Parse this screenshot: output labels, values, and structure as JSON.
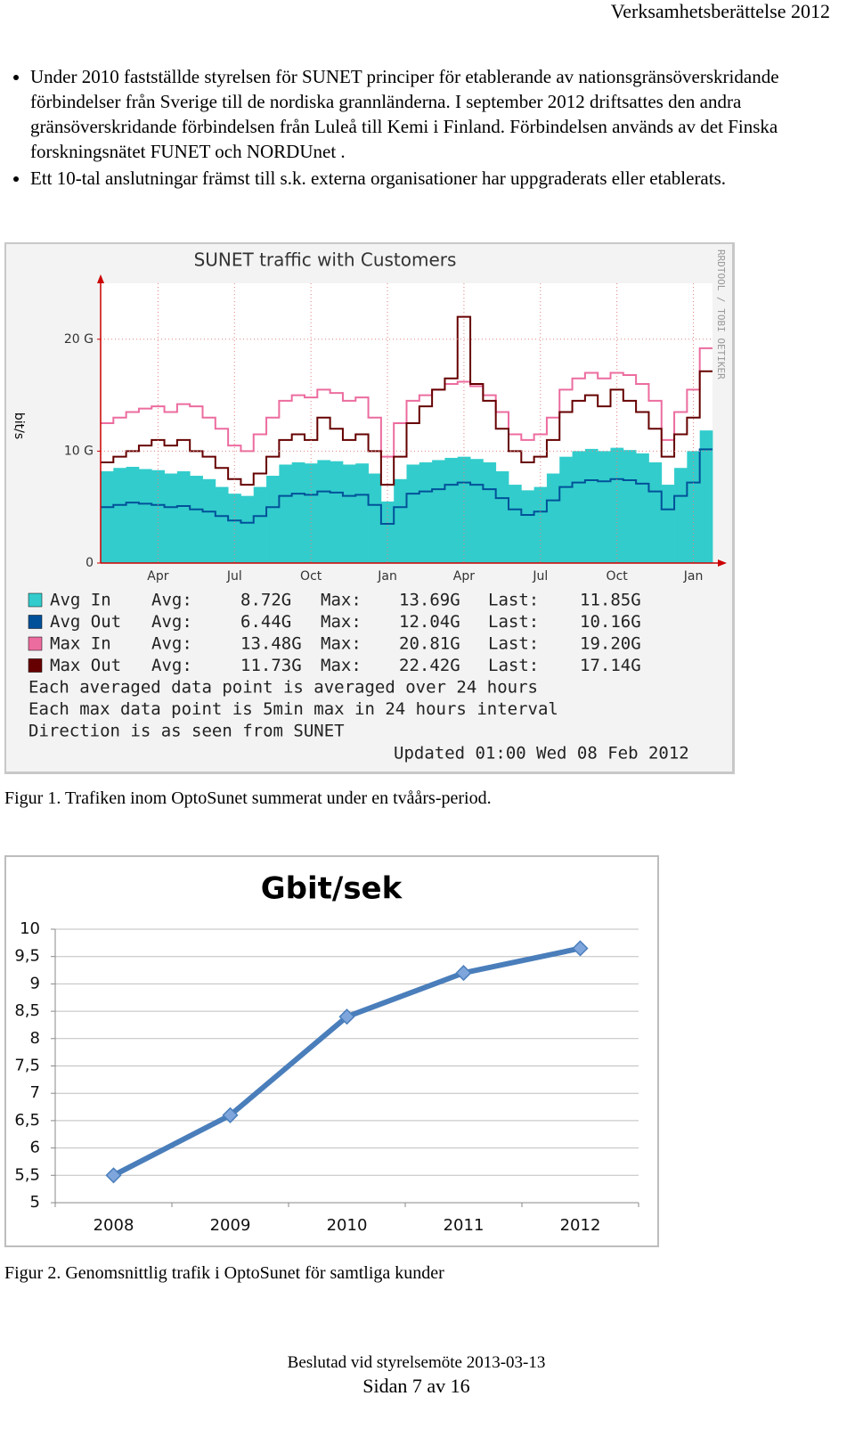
{
  "header": "Verksamhetsberättelse 2012",
  "bullets": [
    "Under 2010 fastställde styrelsen för SUNET principer för etablerande av nationsgränsöverskridande förbindelser från Sverige till de nordiska grannländerna. I september 2012 driftsattes den andra gränsöverskridande förbindelsen från Luleå till Kemi i Finland. Förbindelsen används av det Finska forskningsnätet FUNET och NORDUnet .",
    "Ett 10-tal anslutningar främst till s.k. externa organisationer har uppgraderats eller etablerats."
  ],
  "captions": [
    "Figur 1. Trafiken inom OptoSunet summerat under en tvåårs-period.",
    "Figur 2. Genomsnittlig trafik i OptoSunet för samtliga kunder"
  ],
  "footer": [
    "Beslutad vid styrelsemöte 2013-03-13",
    "Sidan 7 av 16"
  ],
  "chart_data": [
    {
      "type": "line",
      "title": "SUNET traffic with Customers",
      "ylabel": "bit/s",
      "side_note": "RRDTOOL / TOBI OETIKER",
      "categories": [
        null,
        null,
        null,
        null,
        "Apr",
        null,
        null,
        null,
        null,
        null,
        "Jul",
        null,
        null,
        null,
        null,
        null,
        "Oct",
        null,
        null,
        null,
        null,
        null,
        "Jan",
        null,
        null,
        null,
        null,
        null,
        "Apr",
        null,
        null,
        null,
        null,
        null,
        "Jul",
        null,
        null,
        null,
        null,
        null,
        "Oct",
        null,
        null,
        null,
        null,
        null,
        "Jan",
        null
      ],
      "ylim": [
        0,
        25
      ],
      "yticks": [
        0,
        {
          "value": 10,
          "label": "10 G"
        },
        {
          "value": 20,
          "label": "20 G"
        }
      ],
      "grid": true,
      "stat_labels": [
        "Avg:",
        "Max:",
        "Last:"
      ],
      "series": [
        {
          "name": "Avg In",
          "color": "#33cccc",
          "kind": "area",
          "stats": [
            "8.72G",
            "13.69G",
            "11.85G"
          ],
          "values": [
            8.2,
            8.5,
            8.6,
            8.4,
            8.3,
            8.0,
            8.2,
            7.8,
            7.5,
            6.8,
            6.2,
            6.0,
            6.8,
            7.8,
            8.8,
            9.0,
            8.9,
            9.2,
            9.1,
            8.8,
            8.9,
            8.0,
            5.5,
            7.5,
            8.8,
            9.0,
            9.2,
            9.4,
            9.5,
            9.3,
            9.0,
            8.2,
            7.0,
            6.5,
            6.8,
            8.0,
            9.5,
            10.0,
            10.2,
            10.0,
            10.3,
            10.1,
            9.8,
            9.0,
            7.0,
            8.5,
            10.0,
            11.85
          ]
        },
        {
          "name": "Avg Out",
          "color": "#005199",
          "kind": "line",
          "stats": [
            "6.44G",
            "12.04G",
            "10.16G"
          ],
          "values": [
            5.0,
            5.2,
            5.4,
            5.3,
            5.2,
            5.0,
            5.1,
            4.8,
            4.6,
            4.2,
            3.8,
            3.6,
            4.2,
            5.0,
            6.0,
            6.2,
            6.1,
            6.4,
            6.3,
            6.0,
            6.1,
            5.2,
            3.5,
            5.0,
            6.2,
            6.4,
            6.6,
            7.0,
            7.2,
            7.0,
            6.6,
            5.8,
            4.8,
            4.3,
            4.6,
            5.6,
            6.8,
            7.2,
            7.4,
            7.3,
            7.5,
            7.4,
            7.1,
            6.4,
            4.8,
            6.0,
            7.2,
            10.16
          ]
        },
        {
          "name": "Max In",
          "color": "#ec6c9f",
          "kind": "line",
          "stats": [
            "13.48G",
            "20.81G",
            "19.20G"
          ],
          "values": [
            12.5,
            13.0,
            13.5,
            13.8,
            14.0,
            13.5,
            14.2,
            14.0,
            13.0,
            12.0,
            10.5,
            10.0,
            11.5,
            13.0,
            14.5,
            15.0,
            14.8,
            15.5,
            15.2,
            14.5,
            14.8,
            13.0,
            9.5,
            12.5,
            14.5,
            15.0,
            15.5,
            16.0,
            16.2,
            15.8,
            15.0,
            13.5,
            11.5,
            11.0,
            11.5,
            13.0,
            15.5,
            16.5,
            17.0,
            16.5,
            17.0,
            16.8,
            16.0,
            14.5,
            11.0,
            13.5,
            15.5,
            19.2
          ]
        },
        {
          "name": "Max Out",
          "color": "#660000",
          "kind": "line",
          "stats": [
            "11.73G",
            "22.42G",
            "17.14G"
          ],
          "values": [
            9.0,
            9.5,
            10.0,
            10.5,
            11.0,
            10.5,
            11.0,
            10.0,
            9.5,
            8.5,
            7.5,
            7.0,
            8.0,
            9.5,
            11.0,
            11.5,
            11.0,
            13.0,
            12.0,
            11.0,
            11.5,
            10.0,
            7.0,
            9.5,
            12.5,
            14.0,
            15.5,
            16.5,
            22.0,
            16.0,
            14.5,
            12.0,
            10.0,
            9.0,
            9.5,
            11.0,
            13.5,
            14.5,
            15.0,
            14.0,
            15.5,
            14.5,
            13.5,
            12.0,
            9.5,
            11.5,
            13.0,
            17.14
          ]
        }
      ],
      "notes": [
        "Each averaged data point is averaged over 24 hours",
        "Each max data point is 5min max in 24 hours interval",
        "Direction is as seen from SUNET"
      ],
      "updated": "Updated 01:00 Wed 08 Feb 2012"
    },
    {
      "type": "line",
      "title": "Gbit/sek",
      "categories": [
        "2008",
        "2009",
        "2010",
        "2011",
        "2012"
      ],
      "values": [
        5.5,
        6.6,
        8.4,
        9.2,
        9.65
      ],
      "color": "#4a7ebb",
      "ylim": [
        5,
        10
      ],
      "yticks": [
        5,
        {
          "value": 5.5,
          "label": "5,5"
        },
        6,
        {
          "value": 6.5,
          "label": "6,5"
        },
        7,
        {
          "value": 7.5,
          "label": "7,5"
        },
        8,
        {
          "value": 8.5,
          "label": "8,5"
        },
        9,
        {
          "value": 9.5,
          "label": "9,5"
        },
        10
      ],
      "grid": true
    }
  ]
}
